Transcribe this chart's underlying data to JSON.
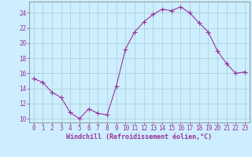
{
  "x": [
    0,
    1,
    2,
    3,
    4,
    5,
    6,
    7,
    8,
    9,
    10,
    11,
    12,
    13,
    14,
    15,
    16,
    17,
    18,
    19,
    20,
    21,
    22,
    23
  ],
  "y": [
    15.3,
    14.8,
    13.5,
    12.8,
    10.8,
    10.0,
    11.3,
    10.7,
    10.5,
    14.3,
    19.2,
    21.5,
    22.8,
    23.8,
    24.5,
    24.3,
    24.8,
    24.0,
    22.7,
    21.5,
    19.0,
    17.3,
    16.0,
    16.2
  ],
  "line_color": "#993399",
  "marker": "+",
  "marker_size": 4,
  "bg_color": "#cceeff",
  "grid_color": "#aacccc",
  "xlabel": "Windchill (Refroidissement éolien,°C)",
  "xlabel_color": "#993399",
  "tick_color": "#993399",
  "ylim": [
    9.5,
    25.5
  ],
  "yticks": [
    10,
    12,
    14,
    16,
    18,
    20,
    22,
    24
  ],
  "xticks": [
    0,
    1,
    2,
    3,
    4,
    5,
    6,
    7,
    8,
    9,
    10,
    11,
    12,
    13,
    14,
    15,
    16,
    17,
    18,
    19,
    20,
    21,
    22,
    23
  ],
  "spine_color": "#888888",
  "font_family": "monospace",
  "tick_fontsize": 5.5,
  "xlabel_fontsize": 6.0
}
